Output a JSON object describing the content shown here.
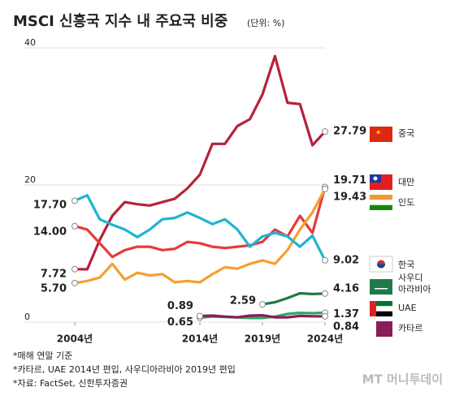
{
  "chart_data": {
    "type": "line",
    "title": "MSCI 신흥국 지수 내 주요국 비중",
    "subtitle": "(단위: %)",
    "x": [
      2004,
      2005,
      2006,
      2007,
      2008,
      2009,
      2010,
      2011,
      2012,
      2013,
      2014,
      2015,
      2016,
      2017,
      2018,
      2019,
      2020,
      2021,
      2022,
      2023,
      2024
    ],
    "xlim": [
      2004,
      2024
    ],
    "xticks": [
      {
        "value": 2004,
        "label": "2004년"
      },
      {
        "value": 2014,
        "label": "2014년"
      },
      {
        "value": 2019,
        "label": "2019년"
      },
      {
        "value": 2024,
        "label": "2024년"
      }
    ],
    "ylim": [
      0,
      40
    ],
    "yticks": [
      0,
      20,
      40
    ],
    "grid": true,
    "series": [
      {
        "name": "중국",
        "color": "#b5223a",
        "values": [
          7.72,
          7.7,
          12,
          15.5,
          17.5,
          17.2,
          17,
          17.5,
          18,
          19.5,
          21.5,
          26,
          26,
          28.6,
          29.6,
          33.2,
          38.8,
          32,
          31.8,
          25.8,
          27.79
        ],
        "value_labels": [
          "7.72",
          null,
          null,
          null,
          null,
          null,
          null,
          null,
          null,
          null,
          null,
          null,
          null,
          null,
          null,
          null,
          null,
          null,
          null,
          null,
          "27.79"
        ]
      },
      {
        "name": "대만",
        "color": "#e53c3c",
        "values": [
          14,
          13.5,
          11.5,
          9.5,
          10.5,
          11,
          11,
          10.5,
          10.7,
          11.7,
          11.5,
          11,
          10.8,
          11,
          11.2,
          11.7,
          13.5,
          12.5,
          15.5,
          13,
          19.71
        ],
        "value_labels": [
          "14.00",
          null,
          null,
          null,
          null,
          null,
          null,
          null,
          null,
          null,
          null,
          null,
          null,
          null,
          null,
          null,
          null,
          null,
          null,
          null,
          "19.71"
        ]
      },
      {
        "name": "인도",
        "color": "#f5a030",
        "values": [
          5.7,
          6,
          6.5,
          8.5,
          6.2,
          7.2,
          6.8,
          7,
          5.8,
          6,
          5.8,
          7,
          8,
          7.8,
          8.5,
          9,
          8.5,
          10.5,
          13.5,
          16,
          19.43
        ],
        "value_labels": [
          "5.70",
          null,
          null,
          null,
          null,
          null,
          null,
          null,
          null,
          null,
          null,
          null,
          null,
          null,
          null,
          null,
          null,
          null,
          null,
          null,
          "19.43"
        ]
      },
      {
        "name": "한국",
        "color": "#20b4d0",
        "values": [
          17.7,
          18.5,
          15,
          14.2,
          13.5,
          12.4,
          13.5,
          15,
          15.2,
          16,
          15.2,
          14.3,
          15,
          13.5,
          11,
          12.5,
          13,
          12.5,
          11,
          12.6,
          9.02
        ],
        "value_labels": [
          "17.70",
          null,
          null,
          null,
          null,
          null,
          null,
          null,
          null,
          null,
          null,
          null,
          null,
          null,
          null,
          null,
          null,
          null,
          null,
          null,
          "9.02"
        ]
      },
      {
        "name": "사우디 아라비아",
        "color": "#1e7a4a",
        "values": [
          null,
          null,
          null,
          null,
          null,
          null,
          null,
          null,
          null,
          null,
          null,
          null,
          null,
          null,
          null,
          2.59,
          2.9,
          3.5,
          4.2,
          4.1,
          4.16
        ],
        "value_labels": [
          null,
          null,
          null,
          null,
          null,
          null,
          null,
          null,
          null,
          null,
          null,
          null,
          null,
          null,
          null,
          "2.59",
          null,
          null,
          null,
          null,
          "4.16"
        ]
      },
      {
        "name": "UAE",
        "color": "#2eaa60",
        "values": [
          null,
          null,
          null,
          null,
          null,
          null,
          null,
          null,
          null,
          null,
          0.65,
          0.8,
          0.75,
          0.7,
          0.6,
          0.6,
          0.8,
          1.2,
          1.35,
          1.3,
          1.37
        ],
        "value_labels": [
          null,
          null,
          null,
          null,
          null,
          null,
          null,
          null,
          null,
          null,
          "0.65",
          null,
          null,
          null,
          null,
          null,
          null,
          null,
          null,
          null,
          "1.37"
        ]
      },
      {
        "name": "카타르",
        "color": "#8a1d5a",
        "values": [
          null,
          null,
          null,
          null,
          null,
          null,
          null,
          null,
          null,
          null,
          0.89,
          0.95,
          0.8,
          0.7,
          0.95,
          1,
          0.7,
          0.7,
          0.9,
          0.85,
          0.84
        ],
        "value_labels": [
          null,
          null,
          null,
          null,
          null,
          null,
          null,
          null,
          null,
          null,
          "0.89",
          null,
          null,
          null,
          null,
          null,
          null,
          null,
          null,
          null,
          "0.84"
        ]
      }
    ],
    "notes": [
      "*매해 연말 기준",
      "*카타르, UAE 2014년 편입, 사우디아라비아 2019년 편입",
      "*자료: FactSet, 신한투자증권"
    ],
    "watermark": "MT 머니투데이"
  }
}
